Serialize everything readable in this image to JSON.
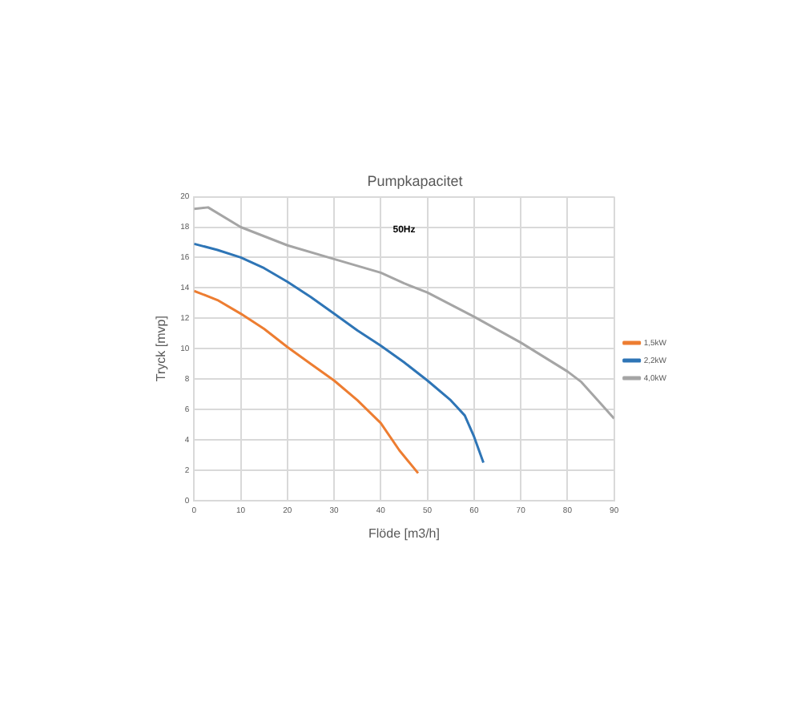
{
  "chart_data": {
    "type": "line",
    "title": "Pumpkapacitet",
    "xlabel": "Flöde [m3/h]",
    "ylabel": "Tryck [mvp]",
    "annotations": [
      {
        "text": "50Hz"
      }
    ],
    "xlim": [
      0,
      90
    ],
    "xticks": [
      0,
      10,
      20,
      30,
      40,
      50,
      60,
      70,
      80,
      90
    ],
    "ylim": [
      0,
      20
    ],
    "yticks": [
      0,
      2,
      4,
      6,
      8,
      10,
      12,
      14,
      16,
      18,
      20
    ],
    "grid": true,
    "legend": "right",
    "marker": "none",
    "line_style": "solid",
    "series": [
      {
        "name": "1,5kW",
        "color": "#ed7d31",
        "x": [
          0,
          5,
          10,
          15,
          20,
          25,
          30,
          35,
          40,
          44,
          48
        ],
        "values": [
          13.8,
          13.2,
          12.3,
          11.3,
          10.1,
          9.0,
          7.9,
          6.6,
          5.1,
          3.3,
          1.8
        ]
      },
      {
        "name": "2,2kW",
        "color": "#2e75b6",
        "x": [
          0,
          5,
          10,
          15,
          20,
          25,
          30,
          35,
          40,
          45,
          50,
          55,
          58,
          60,
          62
        ],
        "values": [
          16.9,
          16.5,
          16.0,
          15.3,
          14.4,
          13.4,
          12.3,
          11.2,
          10.2,
          9.1,
          7.9,
          6.6,
          5.6,
          4.2,
          2.5
        ]
      },
      {
        "name": "4,0kW",
        "color": "#a5a5a5",
        "x": [
          0,
          3,
          10,
          20,
          30,
          40,
          45,
          50,
          60,
          70,
          80,
          83,
          90
        ],
        "values": [
          19.2,
          19.3,
          18.0,
          16.8,
          15.9,
          15.0,
          14.3,
          13.7,
          12.1,
          10.4,
          8.5,
          7.8,
          5.4
        ]
      }
    ]
  }
}
